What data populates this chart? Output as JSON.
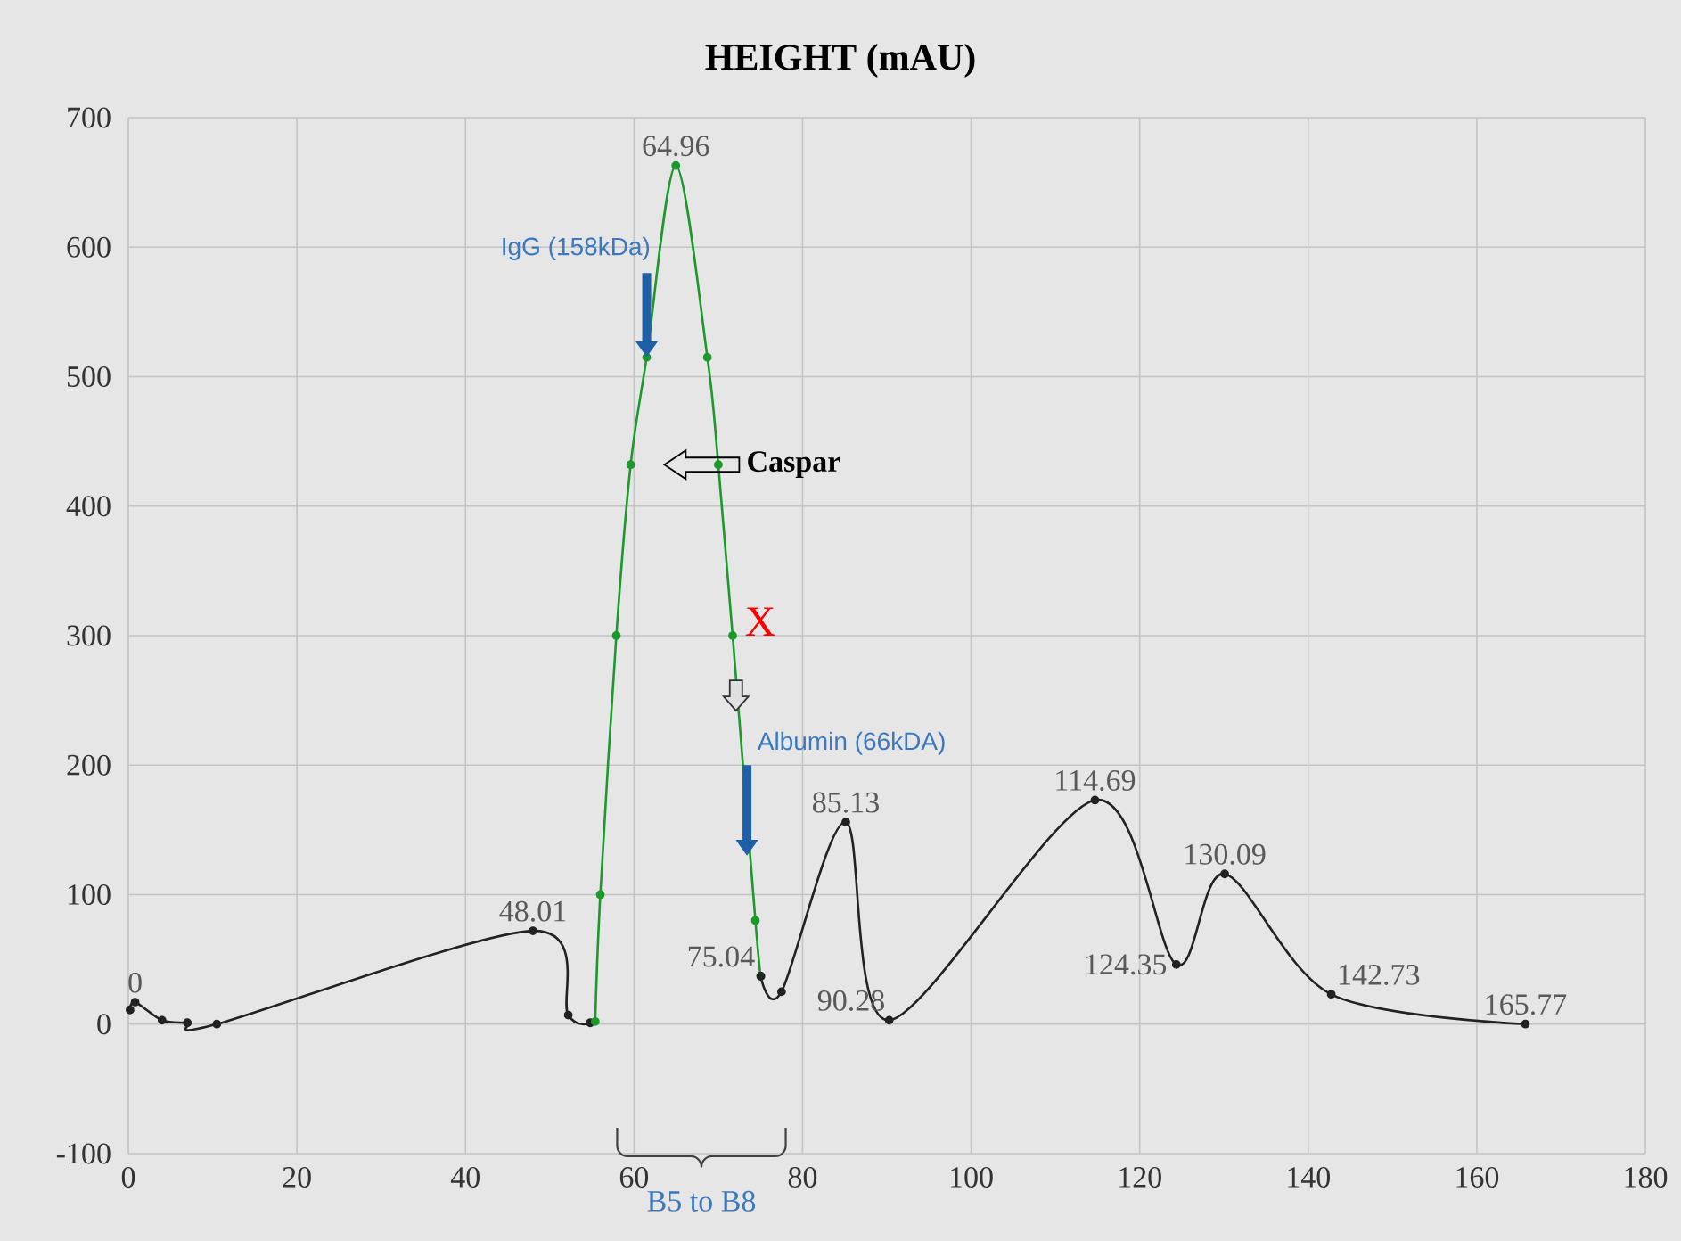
{
  "chart_data": {
    "type": "line",
    "title": "HEIGHT (mAU)",
    "series": [
      {
        "color": "#222222",
        "x": [
          0.2,
          0.8,
          4,
          7,
          10.5,
          48.01,
          52.2,
          54.8
        ],
        "values": [
          11,
          17,
          3,
          1,
          0,
          72,
          7,
          1
        ]
      },
      {
        "color": "#1a9a2a",
        "x": [
          55.4,
          56,
          57.9,
          59.6,
          61.5,
          64.96,
          68.7,
          70,
          71.7,
          74.4,
          75.04
        ],
        "values": [
          2,
          100,
          300,
          432,
          515,
          663,
          515,
          432,
          300,
          80,
          37
        ]
      },
      {
        "color": "#222222",
        "x": [
          75.04,
          77.5,
          85.13,
          90.28,
          114.69,
          124.35,
          130.09,
          142.73,
          165.77
        ],
        "values": [
          37,
          25,
          156,
          3,
          173,
          46,
          116,
          23,
          0
        ]
      }
    ],
    "xlim": [
      0,
      180
    ],
    "ylim": [
      -100,
      700
    ],
    "xticks": [
      0,
      20,
      40,
      60,
      80,
      100,
      120,
      140,
      160,
      180
    ],
    "yticks": [
      -100,
      0,
      100,
      200,
      300,
      400,
      500,
      600,
      700
    ],
    "grid": true,
    "marker": "circle",
    "line_style": "solid",
    "annotations": [
      {
        "text": "0",
        "x": 0.8,
        "y": 17
      },
      {
        "text": "48.01",
        "x": 48.01,
        "y": 72
      },
      {
        "text": "64.96",
        "x": 64.96,
        "y": 663
      },
      {
        "text": "75.04",
        "x": 75.04,
        "y": 37
      },
      {
        "text": "85.13",
        "x": 85.13,
        "y": 156
      },
      {
        "text": "90.28",
        "x": 90.28,
        "y": 3
      },
      {
        "text": "114.69",
        "x": 114.69,
        "y": 173
      },
      {
        "text": "124.35",
        "x": 124.35,
        "y": 46
      },
      {
        "text": "130.09",
        "x": 130.09,
        "y": 116
      },
      {
        "text": "142.73",
        "x": 142.73,
        "y": 23
      },
      {
        "text": "165.77",
        "x": 165.77,
        "y": 0
      },
      {
        "text": "IgG (158kDa)",
        "x": 61.5,
        "y": 515
      },
      "Caspar",
      {
        "text": "X",
        "x": 72.5,
        "y": 300
      },
      {
        "text": "Albumin (66kDA)",
        "x": 73.4,
        "y": 130
      },
      "B5 to B8"
    ]
  }
}
